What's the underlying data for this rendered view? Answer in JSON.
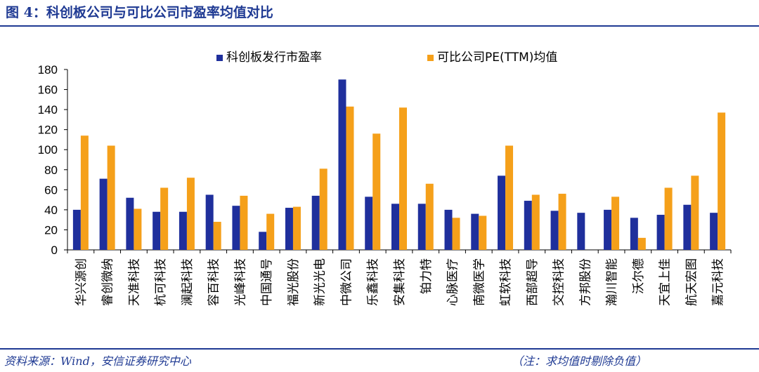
{
  "header": {
    "title": "图 4：科创板公司与可比公司市盈率均值对比"
  },
  "footer": {
    "source": "资料来源：Wind，安信证券研究中心",
    "note": "（注：求均值时剔除负值）"
  },
  "colors": {
    "series1": "#1f2f9c",
    "series2": "#f5a01a",
    "accent": "#1f3a93"
  },
  "chart_data": {
    "type": "bar",
    "title": "",
    "xlabel": "",
    "ylabel": "",
    "ylim": [
      0,
      180
    ],
    "yticks": [
      0,
      20,
      40,
      60,
      80,
      100,
      120,
      140,
      160,
      180
    ],
    "legend": "top-center",
    "grid": false,
    "categories": [
      "华兴源创",
      "睿创微纳",
      "天准科技",
      "杭可科技",
      "澜起科技",
      "容百科技",
      "光峰科技",
      "中国通号",
      "福光股份",
      "新光光电",
      "中微公司",
      "乐鑫科技",
      "安集科技",
      "铂力特",
      "心脉医疗",
      "南微医学",
      "虹软科技",
      "西部超导",
      "交控科技",
      "方邦股份",
      "瀚川智能",
      "沃尔德",
      "天宜上佳",
      "航天宏图",
      "嘉元科技"
    ],
    "series": [
      {
        "name": "科创板发行市盈率",
        "values": [
          40,
          71,
          52,
          38,
          38,
          55,
          44,
          18,
          42,
          54,
          170,
          53,
          46,
          46,
          40,
          36,
          74,
          49,
          39,
          37,
          40,
          32,
          35,
          45,
          37
        ]
      },
      {
        "name": "可比公司PE(TTM)均值",
        "values": [
          114,
          104,
          41,
          62,
          72,
          28,
          54,
          36,
          43,
          81,
          143,
          116,
          142,
          66,
          32,
          34,
          104,
          55,
          56,
          0,
          53,
          12,
          62,
          74,
          137
        ]
      }
    ]
  }
}
